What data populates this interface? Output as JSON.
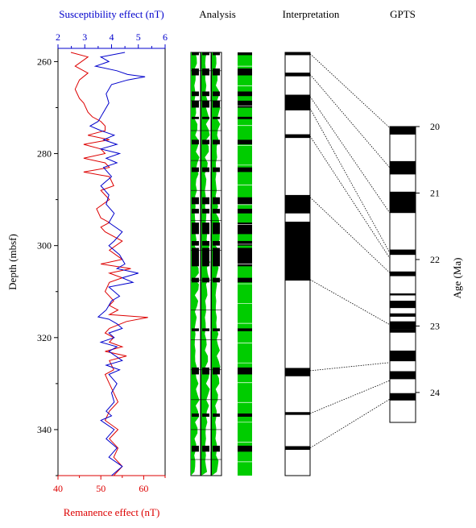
{
  "chart_data": {
    "type": "line",
    "colors": {
      "remanence": "#dd0000",
      "susceptibility": "#0000cc",
      "analysis_fill": "#00cc00",
      "polarity_normal": "#000000"
    },
    "y_axis": {
      "label": "Depth (mbsf)",
      "range": [
        258,
        350
      ],
      "ticks": [
        "260",
        "280",
        "300",
        "320",
        "340"
      ]
    },
    "top_axis": {
      "label": "Susceptibility effect (nT)",
      "range": [
        2,
        6
      ],
      "ticks": [
        "2",
        "3",
        "4",
        "5",
        "6"
      ]
    },
    "bottom_axis": {
      "label": "Remanence effect (nT)",
      "range": [
        40,
        65
      ],
      "ticks": [
        "40",
        "50",
        "60"
      ]
    },
    "series": [
      {
        "key": "remanence",
        "points": [
          [
            43,
            258
          ],
          [
            47,
            259
          ],
          [
            44,
            261
          ],
          [
            47,
            262.5
          ],
          [
            45,
            264
          ],
          [
            44,
            266
          ],
          [
            45,
            268
          ],
          [
            46,
            269
          ],
          [
            47,
            271
          ],
          [
            48,
            272
          ],
          [
            50,
            273
          ],
          [
            51,
            274
          ],
          [
            51,
            275
          ],
          [
            47,
            276
          ],
          [
            52,
            277
          ],
          [
            46,
            278
          ],
          [
            50,
            279
          ],
          [
            51,
            280
          ],
          [
            46,
            281
          ],
          [
            51,
            282
          ],
          [
            52,
            283
          ],
          [
            46,
            284
          ],
          [
            52,
            285
          ],
          [
            53,
            287
          ],
          [
            50,
            288
          ],
          [
            52,
            290
          ],
          [
            49,
            292
          ],
          [
            50,
            294
          ],
          [
            52,
            295
          ],
          [
            50,
            296
          ],
          [
            51,
            297
          ],
          [
            55,
            299
          ],
          [
            52,
            301
          ],
          [
            55,
            303
          ],
          [
            50,
            304
          ],
          [
            57,
            305
          ],
          [
            52,
            306
          ],
          [
            55,
            307
          ],
          [
            52,
            308
          ],
          [
            51,
            310
          ],
          [
            53,
            312
          ],
          [
            52,
            313
          ],
          [
            54,
            314
          ],
          [
            52,
            315
          ],
          [
            61,
            315.6
          ],
          [
            56,
            316.5
          ],
          [
            52,
            318
          ],
          [
            51,
            319
          ],
          [
            53,
            320
          ],
          [
            52,
            321
          ],
          [
            55,
            322
          ],
          [
            51,
            323
          ],
          [
            56,
            324
          ],
          [
            52,
            325
          ],
          [
            53,
            327
          ],
          [
            51,
            328
          ],
          [
            52,
            330
          ],
          [
            53,
            332
          ],
          [
            54,
            334
          ],
          [
            52,
            336
          ],
          [
            51,
            338
          ],
          [
            54,
            340
          ],
          [
            52,
            342
          ],
          [
            54,
            344
          ],
          [
            53,
            346
          ],
          [
            55,
            348
          ],
          [
            53,
            350
          ]
        ]
      },
      {
        "key": "susceptibility",
        "points": [
          [
            4.5,
            258
          ],
          [
            3.6,
            259
          ],
          [
            3.9,
            260
          ],
          [
            3.4,
            261
          ],
          [
            4.2,
            262
          ],
          [
            4.6,
            262.8
          ],
          [
            5.25,
            263.3
          ],
          [
            4.6,
            264
          ],
          [
            4.0,
            265
          ],
          [
            3.8,
            267
          ],
          [
            3.9,
            269
          ],
          [
            3.7,
            271
          ],
          [
            3.5,
            273
          ],
          [
            3.2,
            274
          ],
          [
            3.6,
            275
          ],
          [
            4.1,
            276
          ],
          [
            3.7,
            277
          ],
          [
            4.2,
            278
          ],
          [
            3.6,
            279
          ],
          [
            4.3,
            280
          ],
          [
            3.8,
            281
          ],
          [
            4.2,
            282
          ],
          [
            3.7,
            283
          ],
          [
            4.0,
            285
          ],
          [
            3.6,
            287
          ],
          [
            3.9,
            289
          ],
          [
            3.8,
            291
          ],
          [
            4.1,
            293
          ],
          [
            3.9,
            295
          ],
          [
            4.4,
            297
          ],
          [
            4.1,
            299
          ],
          [
            3.9,
            300
          ],
          [
            4.3,
            302
          ],
          [
            4.5,
            304
          ],
          [
            4.2,
            305
          ],
          [
            5.0,
            306
          ],
          [
            4.4,
            307
          ],
          [
            4.8,
            308
          ],
          [
            3.9,
            309
          ],
          [
            4.3,
            311
          ],
          [
            4.0,
            312
          ],
          [
            3.8,
            314
          ],
          [
            3.5,
            315.5
          ],
          [
            3.9,
            316
          ],
          [
            4.2,
            317
          ],
          [
            4.4,
            318
          ],
          [
            3.9,
            319
          ],
          [
            4.1,
            320
          ],
          [
            3.6,
            321
          ],
          [
            4.2,
            322
          ],
          [
            3.9,
            323
          ],
          [
            4.4,
            325
          ],
          [
            3.8,
            326
          ],
          [
            4.3,
            327
          ],
          [
            3.9,
            328
          ],
          [
            4.2,
            330
          ],
          [
            4.0,
            332
          ],
          [
            4.1,
            334
          ],
          [
            3.8,
            336
          ],
          [
            4.0,
            337
          ],
          [
            3.6,
            338
          ],
          [
            4.1,
            340
          ],
          [
            3.8,
            342
          ],
          [
            4.2,
            344
          ],
          [
            3.9,
            346
          ],
          [
            4.4,
            348
          ],
          [
            4.0,
            350
          ]
        ]
      }
    ],
    "analysis": {
      "title": "Analysis",
      "black_bands": [
        [
          258,
          258.6
        ],
        [
          261.5,
          263
        ],
        [
          266.5,
          267.5
        ],
        [
          268.5,
          270
        ],
        [
          272,
          272.5
        ],
        [
          277,
          278
        ],
        [
          283,
          284
        ],
        [
          289.5,
          291
        ],
        [
          292,
          293
        ],
        [
          295,
          297.5
        ],
        [
          299,
          300
        ],
        [
          300.5,
          304.5
        ],
        [
          307,
          308
        ],
        [
          318,
          318.6
        ],
        [
          326.5,
          328
        ],
        [
          336.5,
          337.2
        ],
        [
          343.5,
          344.8
        ]
      ]
    },
    "interpretation": {
      "title": "Interpretation",
      "depth_range": [
        258,
        350
      ],
      "normal_bands": [
        [
          258,
          258.6
        ],
        [
          262.4,
          263.2
        ],
        [
          267.2,
          270.6
        ],
        [
          275.8,
          276.6
        ],
        [
          289,
          293
        ],
        [
          294.8,
          307.6
        ],
        [
          326.6,
          328.4
        ],
        [
          336.2,
          336.8
        ],
        [
          343.6,
          344.4
        ]
      ]
    },
    "gpts": {
      "title": "GPTS",
      "axis_label": "Age (Ma)",
      "range": [
        20,
        24.45
      ],
      "ticks": [
        "20",
        "21",
        "22",
        "23",
        "24"
      ],
      "normal_chrons": [
        [
          20.0,
          20.12
        ],
        [
          20.52,
          20.72
        ],
        [
          20.98,
          21.3
        ],
        [
          21.85,
          21.93
        ],
        [
          22.18,
          22.25
        ],
        [
          22.51,
          22.54
        ],
        [
          22.62,
          22.73
        ],
        [
          22.81,
          22.86
        ],
        [
          22.93,
          23.05
        ],
        [
          23.05,
          23.1
        ],
        [
          23.37,
          23.53
        ],
        [
          23.68,
          23.8
        ],
        [
          24.01,
          24.12
        ]
      ]
    },
    "correlations": [
      [
        258.3,
        20.02
      ],
      [
        262.8,
        20.62
      ],
      [
        267.6,
        21.3
      ],
      [
        270.2,
        21.9
      ],
      [
        276.2,
        21.98
      ],
      [
        289.5,
        22.2
      ],
      [
        307.4,
        22.98
      ],
      [
        327.2,
        23.55
      ],
      [
        336.5,
        23.82
      ],
      [
        344.0,
        24.1
      ]
    ]
  }
}
